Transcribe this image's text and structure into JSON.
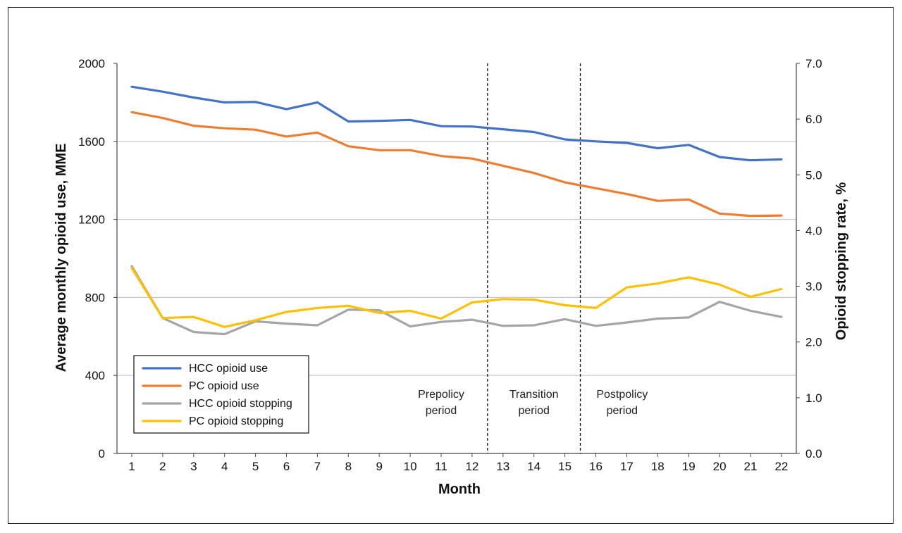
{
  "chart_data": {
    "type": "line",
    "xlabel": "Month",
    "ylabel_left": "Average monthly opioid use, MME",
    "ylabel_right": "Opioid stopping rate, %",
    "x": [
      1,
      2,
      3,
      4,
      5,
      6,
      7,
      8,
      9,
      10,
      11,
      12,
      13,
      14,
      15,
      16,
      17,
      18,
      19,
      20,
      21,
      22
    ],
    "ylim_left": [
      0,
      2000
    ],
    "ylim_right": [
      0.0,
      7.0
    ],
    "yticks_left": [
      "0",
      "400",
      "800",
      "1200",
      "1600",
      "2000"
    ],
    "yticks_right": [
      "0.0",
      "1.0",
      "2.0",
      "3.0",
      "4.0",
      "5.0",
      "6.0",
      "7.0"
    ],
    "gridlines_left": [
      400,
      800,
      1200,
      1600
    ],
    "series": [
      {
        "name": "HCC opioid use",
        "axis": "left",
        "color": "#4472c4",
        "values": [
          1880,
          1855,
          1825,
          1800,
          1802,
          1765,
          1800,
          1702,
          1705,
          1710,
          1678,
          1676,
          1662,
          1648,
          1610,
          1600,
          1592,
          1565,
          1582,
          1520,
          1503,
          1508
        ]
      },
      {
        "name": "PC opioid use",
        "axis": "left",
        "color": "#ed7d31",
        "values": [
          1750,
          1720,
          1680,
          1667,
          1660,
          1625,
          1645,
          1575,
          1555,
          1555,
          1525,
          1512,
          1475,
          1438,
          1390,
          1360,
          1330,
          1295,
          1302,
          1230,
          1218,
          1220
        ]
      },
      {
        "name": "HCC opioid stopping",
        "axis": "right",
        "color": "#a5a5a5",
        "values": [
          3.36,
          2.43,
          2.18,
          2.14,
          2.37,
          2.33,
          2.3,
          2.58,
          2.57,
          2.28,
          2.36,
          2.4,
          2.29,
          2.3,
          2.41,
          2.29,
          2.35,
          2.42,
          2.44,
          2.72,
          2.56,
          2.45
        ]
      },
      {
        "name": "PC opioid stopping",
        "axis": "right",
        "color": "#ffc000",
        "values": [
          3.33,
          2.43,
          2.45,
          2.27,
          2.39,
          2.54,
          2.61,
          2.65,
          2.52,
          2.56,
          2.42,
          2.71,
          2.77,
          2.76,
          2.66,
          2.61,
          2.98,
          3.05,
          3.16,
          3.03,
          2.81,
          2.95
        ]
      }
    ],
    "period_dividers": [
      12.5,
      15.5
    ],
    "period_labels": [
      {
        "line1": "Prepolicy",
        "line2": "period",
        "x": 11
      },
      {
        "line1": "Transition",
        "line2": "period",
        "x": 14
      },
      {
        "line1": "Postpolicy",
        "line2": "period",
        "x": 16.85
      }
    ],
    "legend_position": "bottom-left",
    "grid": true
  }
}
